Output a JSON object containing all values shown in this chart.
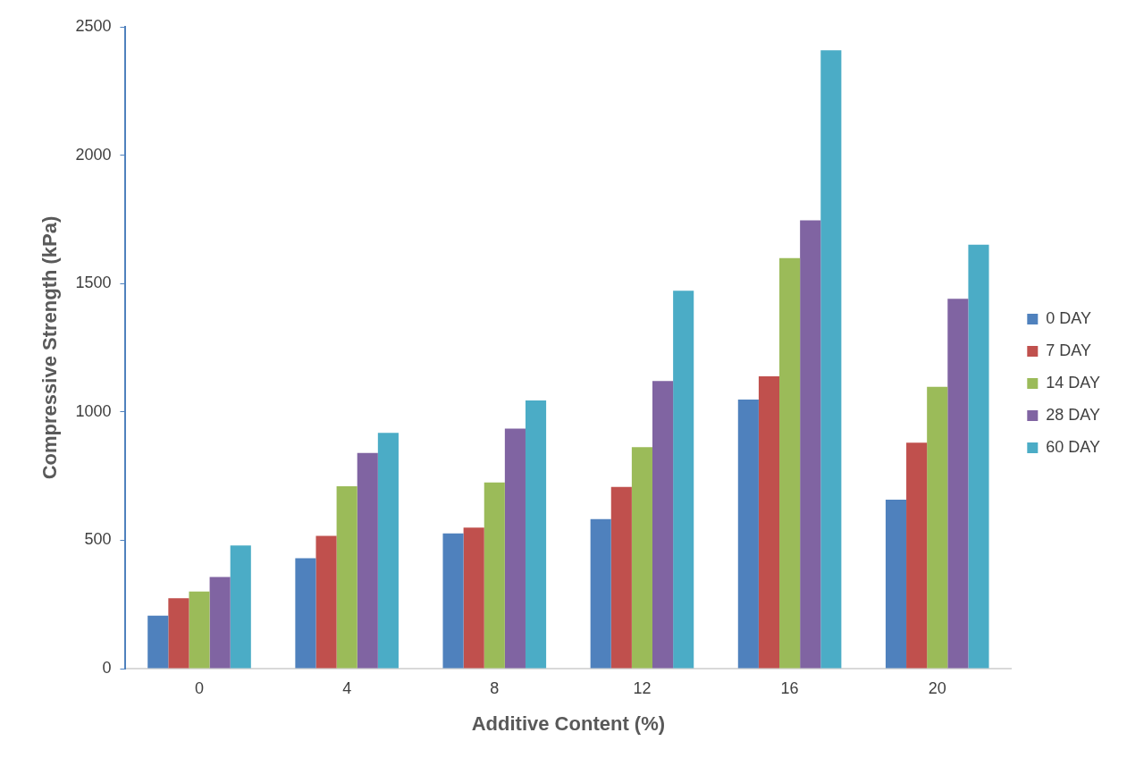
{
  "chart_data": {
    "type": "bar",
    "xlabel": "Additive Content (%)",
    "ylabel": "Compressive Strength (kPa)",
    "categories": [
      "0",
      "4",
      "8",
      "12",
      "16",
      "20"
    ],
    "series": [
      {
        "name": "0 DAY",
        "color": "#4f81bd",
        "values": [
          206,
          430,
          527,
          582,
          1048,
          658
        ]
      },
      {
        "name": "7 DAY",
        "color": "#c0504d",
        "values": [
          274,
          517,
          549,
          708,
          1139,
          880
        ]
      },
      {
        "name": "14 DAY",
        "color": "#9bbb59",
        "values": [
          300,
          710,
          725,
          863,
          1599,
          1098
        ]
      },
      {
        "name": "28 DAY",
        "color": "#8064a2",
        "values": [
          357,
          840,
          935,
          1120,
          1746,
          1441
        ]
      },
      {
        "name": "60 DAY",
        "color": "#4bacc6",
        "values": [
          480,
          918,
          1045,
          1472,
          2409,
          1651
        ]
      }
    ],
    "ylim": [
      0,
      2500
    ],
    "yticks": [
      0,
      500,
      1000,
      1500,
      2000,
      2500
    ],
    "grid": false,
    "legend": "right"
  }
}
